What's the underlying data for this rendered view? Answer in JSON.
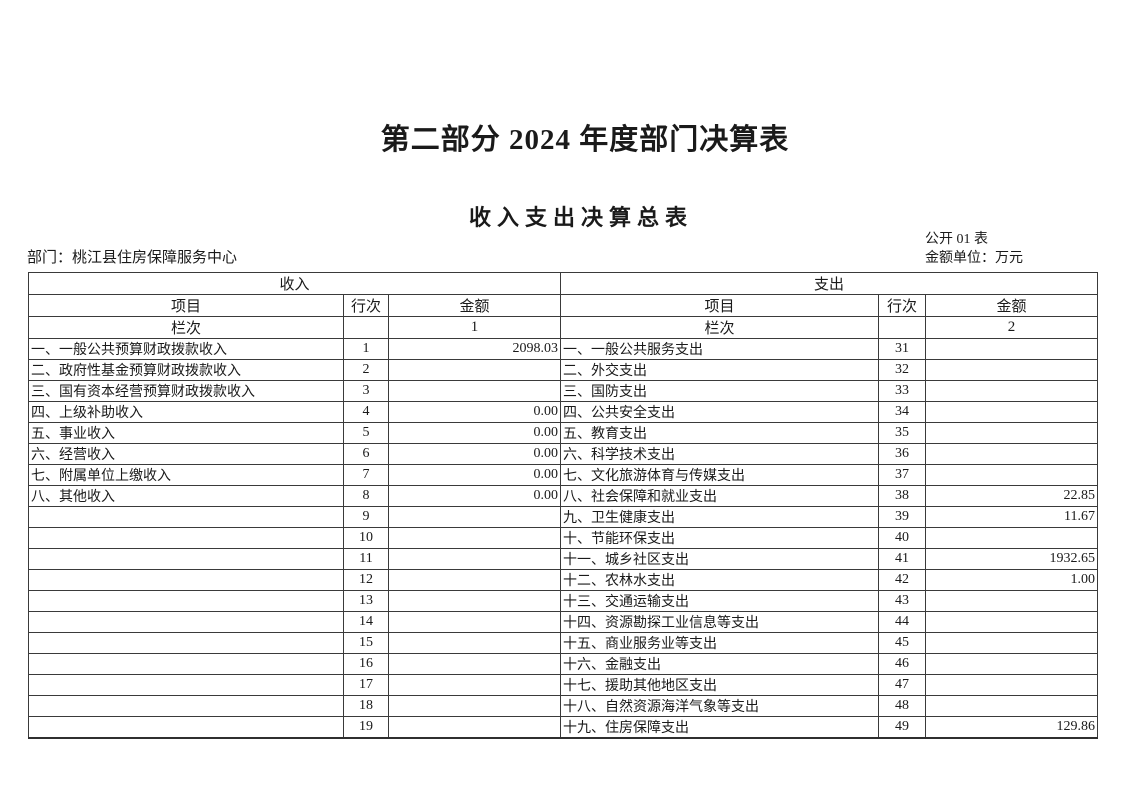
{
  "doc": {
    "part_title": "第二部分 2024 年度部门决算表",
    "table_title": "收入支出决算总表",
    "table_code": "公开 01 表",
    "unit_label": "金额单位：万元",
    "department": "部门：桃江县住房保障服务中心"
  },
  "table": {
    "income_section": "收入",
    "expense_section": "支出",
    "col_item": "项目",
    "col_line": "行次",
    "col_amount": "金额",
    "index_label": "栏次",
    "income_index": "1",
    "expense_index": "2",
    "rows": [
      {
        "income_item": "一、一般公共预算财政拨款收入",
        "income_line": "1",
        "income_amount": "2098.03",
        "expense_item": "一、一般公共服务支出",
        "expense_line": "31",
        "expense_amount": ""
      },
      {
        "income_item": "二、政府性基金预算财政拨款收入",
        "income_line": "2",
        "income_amount": "",
        "expense_item": "二、外交支出",
        "expense_line": "32",
        "expense_amount": ""
      },
      {
        "income_item": "三、国有资本经营预算财政拨款收入",
        "income_line": "3",
        "income_amount": "",
        "expense_item": "三、国防支出",
        "expense_line": "33",
        "expense_amount": ""
      },
      {
        "income_item": "四、上级补助收入",
        "income_line": "4",
        "income_amount": "0.00",
        "expense_item": "四、公共安全支出",
        "expense_line": "34",
        "expense_amount": ""
      },
      {
        "income_item": "五、事业收入",
        "income_line": "5",
        "income_amount": "0.00",
        "expense_item": "五、教育支出",
        "expense_line": "35",
        "expense_amount": ""
      },
      {
        "income_item": "六、经营收入",
        "income_line": "6",
        "income_amount": "0.00",
        "expense_item": "六、科学技术支出",
        "expense_line": "36",
        "expense_amount": ""
      },
      {
        "income_item": "七、附属单位上缴收入",
        "income_line": "7",
        "income_amount": "0.00",
        "expense_item": "七、文化旅游体育与传媒支出",
        "expense_line": "37",
        "expense_amount": ""
      },
      {
        "income_item": "八、其他收入",
        "income_line": "8",
        "income_amount": "0.00",
        "expense_item": "八、社会保障和就业支出",
        "expense_line": "38",
        "expense_amount": "22.85"
      },
      {
        "income_item": "",
        "income_line": "9",
        "income_amount": "",
        "expense_item": "九、卫生健康支出",
        "expense_line": "39",
        "expense_amount": "11.67"
      },
      {
        "income_item": "",
        "income_line": "10",
        "income_amount": "",
        "expense_item": "十、节能环保支出",
        "expense_line": "40",
        "expense_amount": ""
      },
      {
        "income_item": "",
        "income_line": "11",
        "income_amount": "",
        "expense_item": "十一、城乡社区支出",
        "expense_line": "41",
        "expense_amount": "1932.65"
      },
      {
        "income_item": "",
        "income_line": "12",
        "income_amount": "",
        "expense_item": "十二、农林水支出",
        "expense_line": "42",
        "expense_amount": "1.00"
      },
      {
        "income_item": "",
        "income_line": "13",
        "income_amount": "",
        "expense_item": "十三、交通运输支出",
        "expense_line": "43",
        "expense_amount": ""
      },
      {
        "income_item": "",
        "income_line": "14",
        "income_amount": "",
        "expense_item": "十四、资源勘探工业信息等支出",
        "expense_line": "44",
        "expense_amount": ""
      },
      {
        "income_item": "",
        "income_line": "15",
        "income_amount": "",
        "expense_item": "十五、商业服务业等支出",
        "expense_line": "45",
        "expense_amount": ""
      },
      {
        "income_item": "",
        "income_line": "16",
        "income_amount": "",
        "expense_item": "十六、金融支出",
        "expense_line": "46",
        "expense_amount": ""
      },
      {
        "income_item": "",
        "income_line": "17",
        "income_amount": "",
        "expense_item": "十七、援助其他地区支出",
        "expense_line": "47",
        "expense_amount": ""
      },
      {
        "income_item": "",
        "income_line": "18",
        "income_amount": "",
        "expense_item": "十八、自然资源海洋气象等支出",
        "expense_line": "48",
        "expense_amount": ""
      },
      {
        "income_item": "",
        "income_line": "19",
        "income_amount": "",
        "expense_item": "十九、住房保障支出",
        "expense_line": "49",
        "expense_amount": "129.86"
      }
    ]
  }
}
